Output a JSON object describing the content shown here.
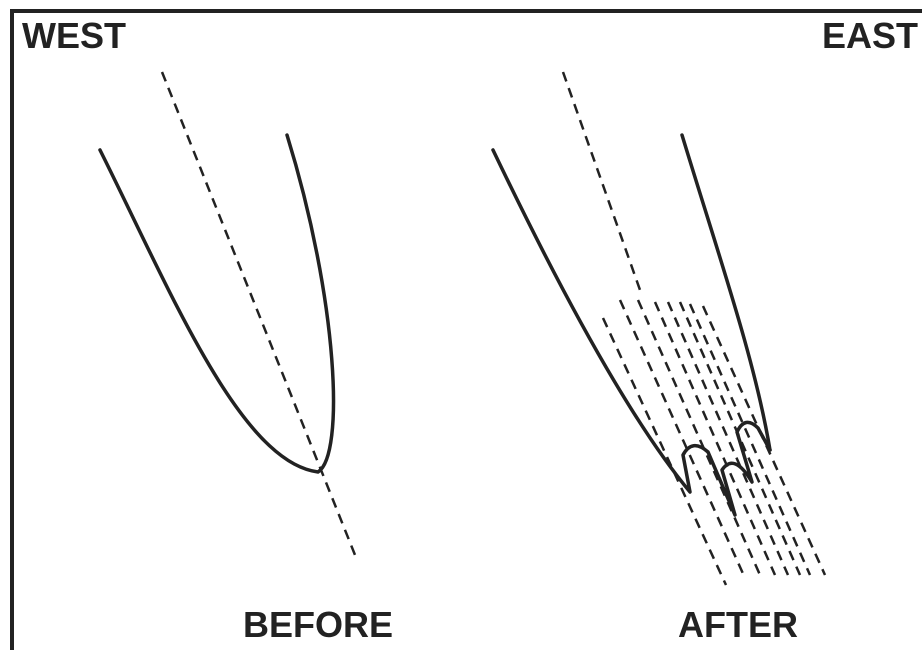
{
  "labels": {
    "west": "WEST",
    "east": "EAST"
  },
  "panels": [
    {
      "label": "BEFORE"
    },
    {
      "label": "AFTER"
    }
  ]
}
